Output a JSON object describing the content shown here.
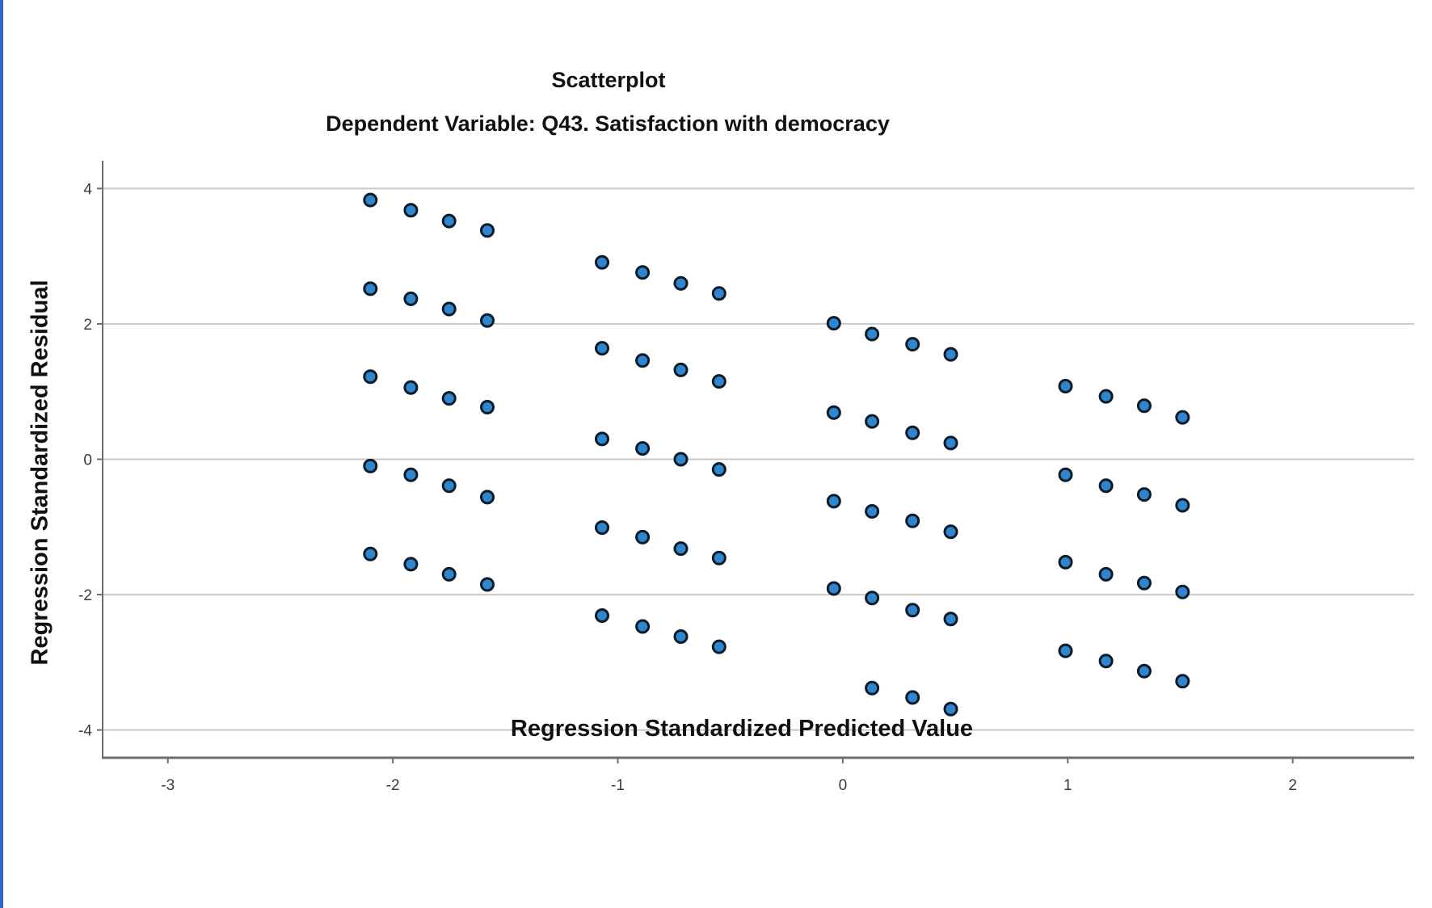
{
  "page": {
    "background": "#ffffff",
    "left_border_color": "#2f64c8"
  },
  "chart_data": {
    "type": "scatter",
    "title": "Scatterplot",
    "subtitle": "Dependent Variable: Q43. Satisfaction with democracy",
    "xlabel": "Regression Standardized Predicted Value",
    "ylabel": "Regression Standardized Residual",
    "xlim": [
      -3.29,
      2.54
    ],
    "ylim": [
      -4.41,
      4.41
    ],
    "x_ticks": [
      -3,
      -2,
      -1,
      0,
      1,
      2
    ],
    "y_ticks": [
      -4,
      -2,
      0,
      2,
      4
    ],
    "grid": "horizontal",
    "legend": "none",
    "gridline_color": "#c8c8c8",
    "axis_color": "#6e6e6e",
    "tick_label_color": "#3a3a3a",
    "point_style": {
      "fill": "#2d86cf",
      "stroke": "#0d1b26",
      "radius": 7.5,
      "stroke_width": 3
    },
    "points": [
      [
        -2.1,
        3.83
      ],
      [
        -1.92,
        3.68
      ],
      [
        -1.75,
        3.52
      ],
      [
        -1.58,
        3.38
      ],
      [
        -2.1,
        2.52
      ],
      [
        -1.92,
        2.37
      ],
      [
        -1.75,
        2.22
      ],
      [
        -1.58,
        2.05
      ],
      [
        -2.1,
        1.22
      ],
      [
        -1.92,
        1.06
      ],
      [
        -1.75,
        0.9
      ],
      [
        -1.58,
        0.77
      ],
      [
        -2.1,
        -0.1
      ],
      [
        -1.92,
        -0.23
      ],
      [
        -1.75,
        -0.39
      ],
      [
        -1.58,
        -0.56
      ],
      [
        -2.1,
        -1.4
      ],
      [
        -1.92,
        -1.55
      ],
      [
        -1.75,
        -1.7
      ],
      [
        -1.58,
        -1.85
      ],
      [
        -1.07,
        2.91
      ],
      [
        -0.89,
        2.76
      ],
      [
        -0.72,
        2.6
      ],
      [
        -0.55,
        2.45
      ],
      [
        -1.07,
        1.64
      ],
      [
        -0.89,
        1.46
      ],
      [
        -0.72,
        1.32
      ],
      [
        -0.55,
        1.15
      ],
      [
        -1.07,
        0.3
      ],
      [
        -0.89,
        0.16
      ],
      [
        -0.72,
        0.0
      ],
      [
        -0.55,
        -0.15
      ],
      [
        -1.07,
        -1.01
      ],
      [
        -0.89,
        -1.15
      ],
      [
        -0.72,
        -1.32
      ],
      [
        -0.55,
        -1.46
      ],
      [
        -1.07,
        -2.31
      ],
      [
        -0.89,
        -2.47
      ],
      [
        -0.72,
        -2.62
      ],
      [
        -0.55,
        -2.77
      ],
      [
        -0.04,
        2.01
      ],
      [
        0.13,
        1.85
      ],
      [
        0.31,
        1.7
      ],
      [
        0.48,
        1.55
      ],
      [
        -0.04,
        0.69
      ],
      [
        0.13,
        0.56
      ],
      [
        0.31,
        0.39
      ],
      [
        0.48,
        0.24
      ],
      [
        -0.04,
        -0.62
      ],
      [
        0.13,
        -0.77
      ],
      [
        0.31,
        -0.91
      ],
      [
        0.48,
        -1.07
      ],
      [
        -0.04,
        -1.91
      ],
      [
        0.13,
        -2.05
      ],
      [
        0.31,
        -2.23
      ],
      [
        0.48,
        -2.36
      ],
      [
        0.13,
        -3.38
      ],
      [
        0.31,
        -3.52
      ],
      [
        0.48,
        -3.69
      ],
      [
        0.99,
        1.08
      ],
      [
        1.17,
        0.93
      ],
      [
        1.34,
        0.79
      ],
      [
        1.51,
        0.62
      ],
      [
        0.99,
        -0.23
      ],
      [
        1.17,
        -0.39
      ],
      [
        1.34,
        -0.52
      ],
      [
        1.51,
        -0.68
      ],
      [
        0.99,
        -1.52
      ],
      [
        1.17,
        -1.7
      ],
      [
        1.34,
        -1.83
      ],
      [
        1.51,
        -1.96
      ],
      [
        0.99,
        -2.83
      ],
      [
        1.17,
        -2.98
      ],
      [
        1.34,
        -3.13
      ],
      [
        1.51,
        -3.28
      ]
    ]
  }
}
